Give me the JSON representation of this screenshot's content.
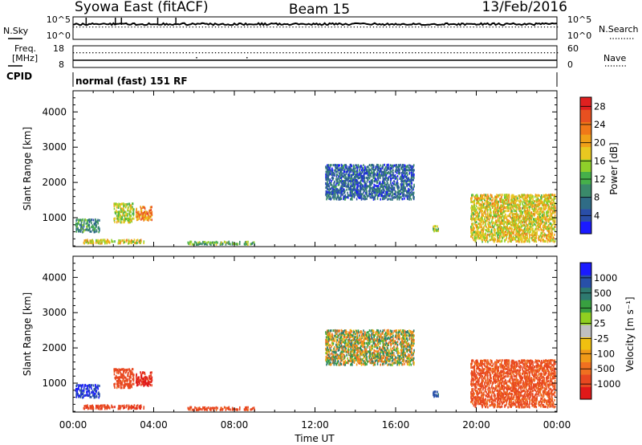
{
  "header": {
    "title_left": "Syowa East (fitACF)",
    "title_center": "Beam 15",
    "title_right": "13/Feb/2016",
    "mode_text": "normal (fast) 151 RF"
  },
  "noise_panel": {
    "left_label": "N.Sky",
    "right_label": "N.Search",
    "left_ticks": [
      "10^5",
      "10^0"
    ],
    "right_ticks": [
      "10^5",
      "10^0"
    ]
  },
  "freq_panel": {
    "left_label_line1": "Freq.",
    "left_label_line2": "[MHz]",
    "cpid_label": "CPID",
    "right_label": "Nave",
    "left_ticks": [
      "18",
      "8"
    ],
    "right_ticks": [
      "60",
      "0"
    ]
  },
  "chart_data": [
    {
      "type": "heatmap",
      "name_panel": "power",
      "ylabel": "Slant Range [km]",
      "xlabel": "Time UT",
      "x_ticks": [
        "00:00",
        "04:00",
        "08:00",
        "12:00",
        "16:00",
        "20:00",
        "00:00"
      ],
      "y_ticks": [
        "1000",
        "2000",
        "3000",
        "4000"
      ],
      "xlim_hours": [
        0,
        24
      ],
      "ylim_km": [
        180,
        4600
      ],
      "colorbar": {
        "label": "Power [dB]",
        "tick_labels": [
          "4",
          "8",
          "12",
          "16",
          "20",
          "24",
          "28"
        ],
        "range": [
          0,
          30
        ],
        "colors": [
          "#1a1aff",
          "#2a4ea8",
          "#2f6c86",
          "#3a8a6a",
          "#46b04a",
          "#8fcf2a",
          "#e8c820",
          "#f0a018",
          "#f07818",
          "#e85020",
          "#e02020"
        ]
      },
      "clusters": [
        {
          "time_hours": [
            0.1,
            1.3
          ],
          "range_km": [
            620,
            1000
          ],
          "value": 10
        },
        {
          "time_hours": [
            0.5,
            3.5
          ],
          "range_km": [
            300,
            420
          ],
          "value": 18
        },
        {
          "time_hours": [
            2.0,
            3.0
          ],
          "range_km": [
            900,
            1450
          ],
          "value": 16
        },
        {
          "time_hours": [
            3.1,
            3.9
          ],
          "range_km": [
            960,
            1360
          ],
          "value": 22
        },
        {
          "time_hours": [
            5.5,
            9.0
          ],
          "range_km": [
            270,
            370
          ],
          "value": 12
        },
        {
          "time_hours": [
            12.5,
            16.9
          ],
          "range_km": [
            1550,
            2550
          ],
          "value": 6
        },
        {
          "time_hours": [
            17.8,
            18.1
          ],
          "range_km": [
            650,
            820
          ],
          "value": 14
        },
        {
          "time_hours": [
            19.7,
            23.9
          ],
          "range_km": [
            350,
            1700
          ],
          "value": 18
        }
      ]
    },
    {
      "type": "heatmap",
      "name_panel": "velocity",
      "ylabel": "Slant Range [km]",
      "xlabel": "Time UT",
      "x_ticks": [
        "00:00",
        "04:00",
        "08:00",
        "12:00",
        "16:00",
        "20:00",
        "00:00"
      ],
      "y_ticks": [
        "1000",
        "2000",
        "3000",
        "4000"
      ],
      "xlim_hours": [
        0,
        24
      ],
      "ylim_km": [
        180,
        4600
      ],
      "colorbar": {
        "label": "Velocity [m s⁻¹]",
        "tick_labels": [
          "1000",
          "500",
          "100",
          "25",
          "-25",
          "-100",
          "-500",
          "-1000"
        ],
        "colors": [
          "#1a1aff",
          "#2850a8",
          "#2e7a70",
          "#38a040",
          "#90d020",
          "#c0c0c0",
          "#f0c010",
          "#f09a18",
          "#f07020",
          "#e84820",
          "#e01818"
        ]
      },
      "clusters": [
        {
          "time_hours": [
            0.1,
            1.3
          ],
          "range_km": [
            620,
            1000
          ],
          "value": 300
        },
        {
          "time_hours": [
            0.5,
            3.5
          ],
          "range_km": [
            300,
            420
          ],
          "value": -200
        },
        {
          "time_hours": [
            2.0,
            3.0
          ],
          "range_km": [
            900,
            1450
          ],
          "value": -150
        },
        {
          "time_hours": [
            3.1,
            3.9
          ],
          "range_km": [
            960,
            1360
          ],
          "value": -400
        },
        {
          "time_hours": [
            5.5,
            9.0
          ],
          "range_km": [
            270,
            370
          ],
          "value": -150
        },
        {
          "time_hours": [
            12.5,
            16.9
          ],
          "range_km": [
            1550,
            2550
          ],
          "value": 0
        },
        {
          "time_hours": [
            17.8,
            18.1
          ],
          "range_km": [
            650,
            820
          ],
          "value": 150
        },
        {
          "time_hours": [
            19.7,
            23.9
          ],
          "range_km": [
            350,
            1700
          ],
          "value": -100
        }
      ]
    }
  ]
}
